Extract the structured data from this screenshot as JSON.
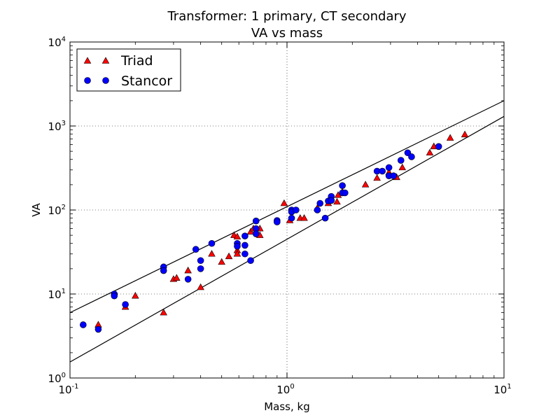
{
  "chart_data": {
    "type": "scatter",
    "title": "Transformer:  1 primary, CT secondary",
    "subtitle": "VA vs mass",
    "xlabel": "Mass, kg",
    "ylabel": "VA",
    "xscale": "log",
    "yscale": "log",
    "xlim": [
      0.1,
      10
    ],
    "ylim": [
      1,
      10000
    ],
    "grid": true,
    "legend": "top-left",
    "x_ticks": [
      {
        "base": "10",
        "exp": "-1",
        "value": 0.1
      },
      {
        "base": "10",
        "exp": "0",
        "value": 1
      },
      {
        "base": "10",
        "exp": "1",
        "value": 10
      }
    ],
    "y_ticks": [
      {
        "base": "10",
        "exp": "0",
        "value": 1
      },
      {
        "base": "10",
        "exp": "1",
        "value": 10
      },
      {
        "base": "10",
        "exp": "2",
        "value": 100
      },
      {
        "base": "10",
        "exp": "3",
        "value": 1000
      },
      {
        "base": "10",
        "exp": "4",
        "value": 10000
      }
    ],
    "series": [
      {
        "name": "Triad",
        "marker": "triangle",
        "color": "#ff0000",
        "points": [
          [
            0.135,
            4.3
          ],
          [
            0.18,
            7
          ],
          [
            0.2,
            9.5
          ],
          [
            0.27,
            6
          ],
          [
            0.3,
            15
          ],
          [
            0.31,
            15.5
          ],
          [
            0.35,
            19
          ],
          [
            0.4,
            12
          ],
          [
            0.45,
            30
          ],
          [
            0.5,
            24
          ],
          [
            0.54,
            28
          ],
          [
            0.57,
            50
          ],
          [
            0.59,
            48
          ],
          [
            0.59,
            33
          ],
          [
            0.59,
            30
          ],
          [
            0.68,
            55
          ],
          [
            0.7,
            60
          ],
          [
            0.75,
            60
          ],
          [
            0.75,
            50
          ],
          [
            0.97,
            120
          ],
          [
            1.03,
            75
          ],
          [
            1.15,
            80
          ],
          [
            1.2,
            80
          ],
          [
            1.38,
            105
          ],
          [
            1.55,
            120
          ],
          [
            1.7,
            125
          ],
          [
            1.72,
            150
          ],
          [
            1.8,
            165
          ],
          [
            2.3,
            200
          ],
          [
            2.6,
            240
          ],
          [
            2.95,
            280
          ],
          [
            3.2,
            245
          ],
          [
            3.4,
            320
          ],
          [
            4.55,
            480
          ],
          [
            4.75,
            570
          ],
          [
            5.65,
            720
          ],
          [
            6.6,
            790
          ]
        ]
      },
      {
        "name": "Stancor",
        "marker": "circle",
        "color": "#0000ff",
        "points": [
          [
            0.115,
            4.3
          ],
          [
            0.135,
            3.8
          ],
          [
            0.16,
            10
          ],
          [
            0.16,
            9.5
          ],
          [
            0.18,
            7.5
          ],
          [
            0.27,
            21
          ],
          [
            0.27,
            19
          ],
          [
            0.35,
            15
          ],
          [
            0.38,
            34
          ],
          [
            0.4,
            25
          ],
          [
            0.4,
            20
          ],
          [
            0.45,
            40
          ],
          [
            0.59,
            40
          ],
          [
            0.59,
            37
          ],
          [
            0.64,
            49
          ],
          [
            0.64,
            38
          ],
          [
            0.64,
            30
          ],
          [
            0.68,
            25
          ],
          [
            0.72,
            74
          ],
          [
            0.72,
            60
          ],
          [
            0.72,
            52
          ],
          [
            0.9,
            75
          ],
          [
            0.9,
            72
          ],
          [
            1.05,
            100
          ],
          [
            1.05,
            95
          ],
          [
            1.05,
            80
          ],
          [
            1.1,
            100
          ],
          [
            1.38,
            100
          ],
          [
            1.42,
            120
          ],
          [
            1.5,
            80
          ],
          [
            1.55,
            128
          ],
          [
            1.6,
            145
          ],
          [
            1.6,
            130
          ],
          [
            1.8,
            195
          ],
          [
            1.8,
            160
          ],
          [
            1.85,
            160
          ],
          [
            2.6,
            290
          ],
          [
            2.75,
            290
          ],
          [
            2.95,
            320
          ],
          [
            2.95,
            255
          ],
          [
            3.1,
            255
          ],
          [
            3.35,
            390
          ],
          [
            3.6,
            480
          ],
          [
            3.75,
            430
          ],
          [
            5.0,
            570
          ]
        ]
      }
    ],
    "fit_lines": [
      {
        "x": [
          0.1,
          10
        ],
        "y": [
          6,
          2000
        ]
      },
      {
        "x": [
          0.1,
          10
        ],
        "y": [
          1.55,
          1300
        ]
      }
    ]
  }
}
